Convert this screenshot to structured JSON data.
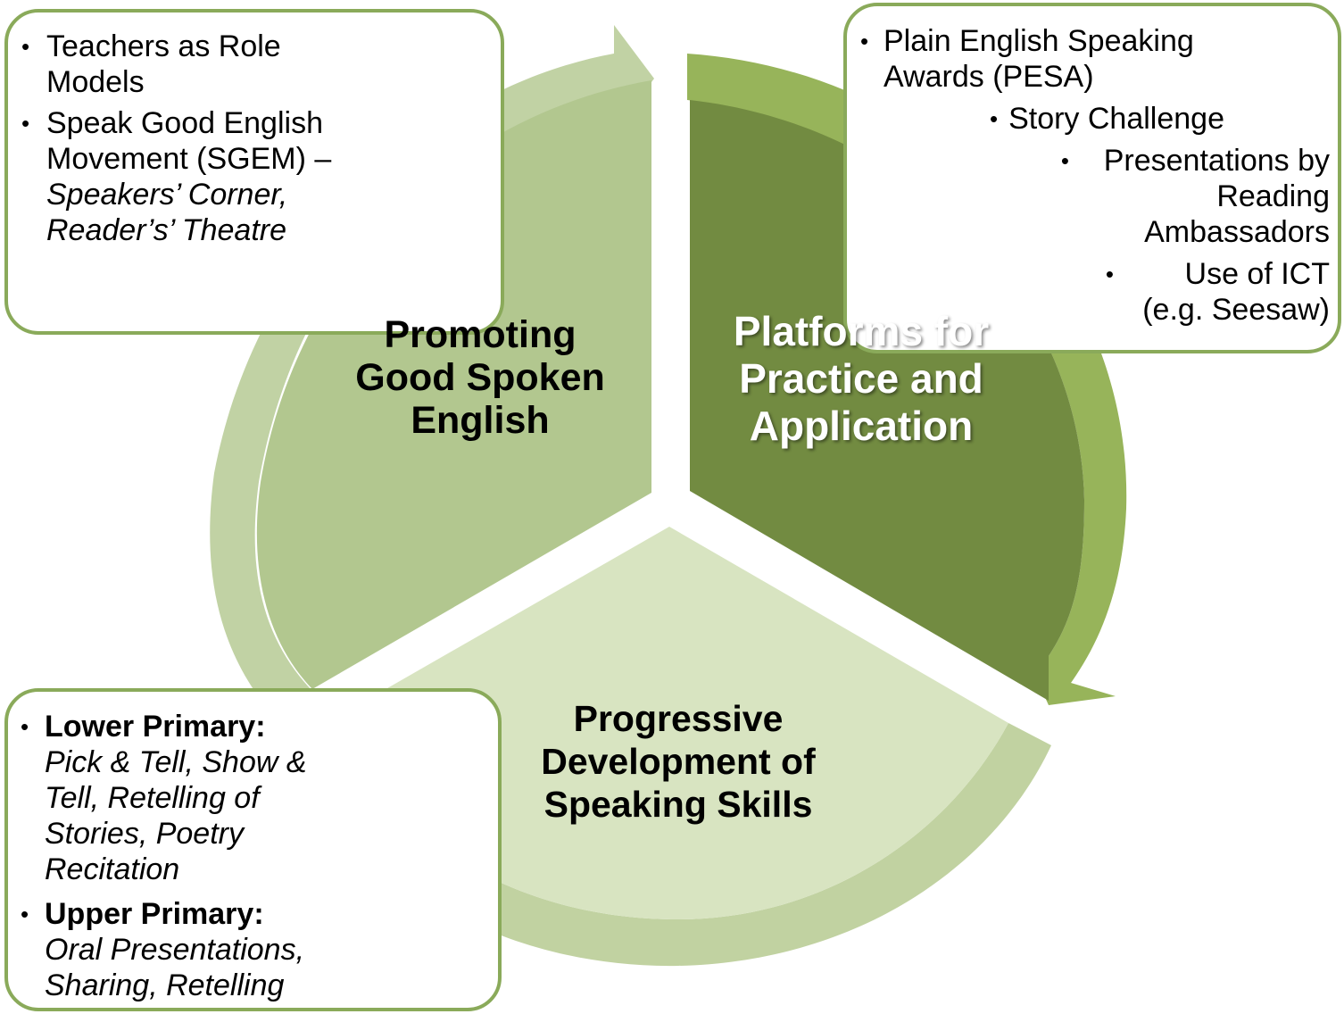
{
  "colors": {
    "promoting_fill": "#b2c78f",
    "promoting_arrow": "#c1d2a4",
    "platforms_fill": "#728b41",
    "platforms_arrow": "#97b45a",
    "progressive_fill": "#d8e4c1",
    "progressive_arrow": "#c1d2a1",
    "callout_border": "#8aaa5a"
  },
  "segments": {
    "promoting": "Promoting Good Spoken English",
    "platforms": "Platforms for Practice and Application",
    "progressive": "Progressive Development of Speaking Skills"
  },
  "promoting_callout": {
    "item1": "Teachers as Role Models",
    "item2_main": "Speak Good English Movement (SGEM) –",
    "item2_italic": "Speakers’ Corner, Reader’s’ Theatre"
  },
  "platforms_callout": {
    "item1": "Plain English Speaking Awards (PESA)",
    "item2": "Story Challenge",
    "item3": "Presentations by Reading Ambassadors",
    "item4": "Use of ICT (e.g. Seesaw)"
  },
  "progressive_callout": {
    "lower_heading": "Lower Primary:",
    "lower_items": "Pick & Tell, Show & Tell, Retelling of Stories, Poetry Recitation",
    "upper_heading": "Upper Primary:",
    "upper_items": "Oral Presentations, Sharing, Retelling"
  }
}
